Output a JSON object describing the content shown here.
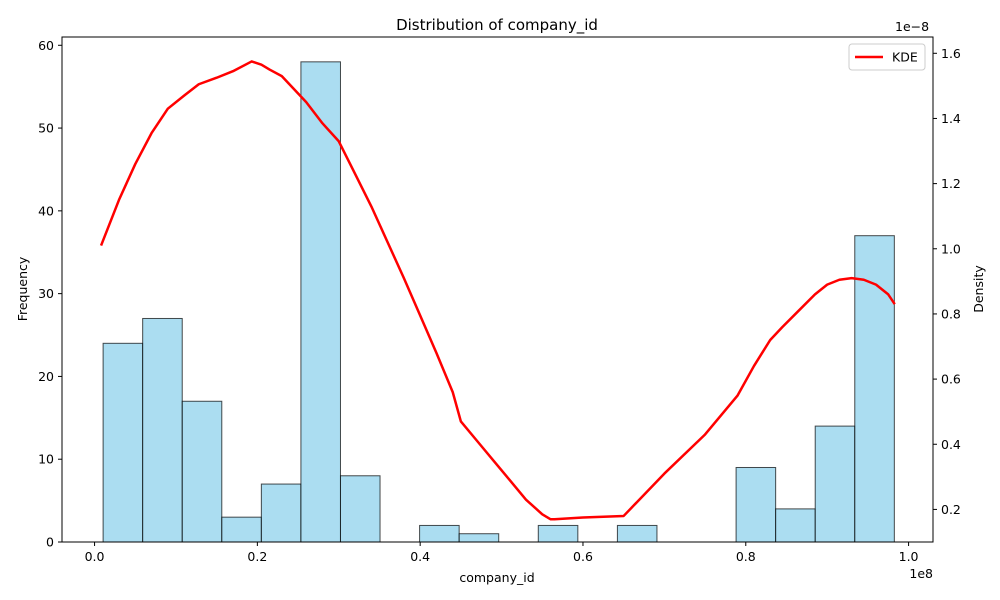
{
  "chart_data": {
    "type": "bar",
    "title": "Distribution of company_id",
    "xlabel": "company_id",
    "ylabel": "Frequency",
    "y2label": "Density",
    "x_offset_text": "1e8",
    "y2_offset_text": "1e−8",
    "xlim": [
      -0.04,
      1.03
    ],
    "ylim": [
      0,
      61
    ],
    "y2lim": [
      0.1,
      1.65
    ],
    "x_ticks": [
      {
        "value": 0.0,
        "label": "0.0"
      },
      {
        "value": 0.2,
        "label": "0.2"
      },
      {
        "value": 0.4,
        "label": "0.4"
      },
      {
        "value": 0.6,
        "label": "0.6"
      },
      {
        "value": 0.8,
        "label": "0.8"
      },
      {
        "value": 1.0,
        "label": "1.0"
      }
    ],
    "y_ticks": [
      {
        "value": 0,
        "label": "0"
      },
      {
        "value": 10,
        "label": "10"
      },
      {
        "value": 20,
        "label": "20"
      },
      {
        "value": 30,
        "label": "30"
      },
      {
        "value": 40,
        "label": "40"
      },
      {
        "value": 50,
        "label": "50"
      },
      {
        "value": 60,
        "label": "60"
      }
    ],
    "y2_ticks": [
      {
        "value": 0.2,
        "label": "0.2"
      },
      {
        "value": 0.4,
        "label": "0.4"
      },
      {
        "value": 0.6,
        "label": "0.6"
      },
      {
        "value": 0.8,
        "label": "0.8"
      },
      {
        "value": 1.0,
        "label": "1.0"
      },
      {
        "value": 1.2,
        "label": "1.2"
      },
      {
        "value": 1.4,
        "label": "1.4"
      },
      {
        "value": 1.6,
        "label": "1.6"
      }
    ],
    "bin_edges": [
      0.0105,
      0.0591,
      0.1077,
      0.1563,
      0.2049,
      0.2535,
      0.3021,
      0.3507,
      0.3993,
      0.4479,
      0.4965,
      0.5451,
      0.5937,
      0.6423,
      0.6909,
      0.7395,
      0.7881,
      0.8367,
      0.8853,
      0.9339,
      0.9825
    ],
    "values": [
      24,
      27,
      17,
      3,
      7,
      58,
      8,
      0,
      2,
      1,
      0,
      2,
      0,
      2,
      0,
      0,
      9,
      4,
      14,
      37
    ],
    "kde": {
      "name": "KDE",
      "x": [
        0.008,
        0.03,
        0.05,
        0.07,
        0.09,
        0.11,
        0.128,
        0.15,
        0.17,
        0.193,
        0.205,
        0.215,
        0.23,
        0.245,
        0.26,
        0.28,
        0.3,
        0.32,
        0.34,
        0.36,
        0.38,
        0.4,
        0.42,
        0.44,
        0.45,
        0.47,
        0.49,
        0.51,
        0.53,
        0.55,
        0.56,
        0.565,
        0.6,
        0.65,
        0.7,
        0.75,
        0.79,
        0.81,
        0.83,
        0.845,
        0.865,
        0.885,
        0.9,
        0.915,
        0.93,
        0.945,
        0.96,
        0.975,
        0.983
      ],
      "y": [
        1.01,
        1.15,
        1.26,
        1.355,
        1.43,
        1.47,
        1.505,
        1.525,
        1.545,
        1.575,
        1.565,
        1.55,
        1.53,
        1.49,
        1.45,
        1.385,
        1.33,
        1.23,
        1.13,
        1.02,
        0.91,
        0.795,
        0.68,
        0.56,
        0.47,
        0.41,
        0.35,
        0.29,
        0.23,
        0.185,
        0.17,
        0.17,
        0.175,
        0.18,
        0.31,
        0.43,
        0.55,
        0.64,
        0.72,
        0.76,
        0.81,
        0.86,
        0.89,
        0.905,
        0.91,
        0.905,
        0.89,
        0.86,
        0.83
      ]
    },
    "legend": {
      "label": "KDE",
      "placement": "top-right"
    },
    "colors": {
      "bar_fill": "#87CEEB",
      "bar_edge": "#000000",
      "kde": "#ff0000"
    },
    "grid": false
  }
}
